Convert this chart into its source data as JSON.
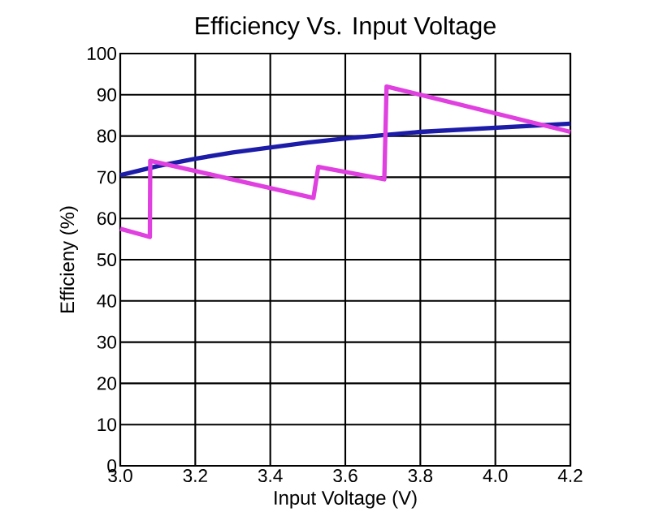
{
  "chart_data": {
    "type": "line",
    "title": "Efficiency Vs. Input Voltage",
    "xlabel": "Input Voltage (V)",
    "ylabel": "Efficieny (%)",
    "xlim": [
      3.0,
      4.2
    ],
    "ylim": [
      0,
      100
    ],
    "xticks": [
      {
        "value": 3.0,
        "label": "3.0"
      },
      3.2,
      3.4,
      3.6,
      3.8,
      {
        "value": 4.0,
        "label": "4.0"
      },
      4.2
    ],
    "yticks": [
      0,
      10,
      20,
      30,
      40,
      50,
      60,
      70,
      80,
      90,
      100
    ],
    "grid": true,
    "marker": "none",
    "line_style": "solid",
    "series": [
      {
        "color": "#1c1ca8",
        "x": [
          3.0,
          3.1,
          3.2,
          3.3,
          3.4,
          3.5,
          3.6,
          3.7,
          3.8,
          3.9,
          4.0,
          4.1,
          4.2
        ],
        "values": [
          70.5,
          72.7,
          74.5,
          76,
          77.2,
          78.4,
          79.4,
          80.2,
          81,
          81.5,
          82,
          82.5,
          83
        ]
      },
      {
        "color": "#e040e0",
        "x": [
          3.0,
          3.079,
          3.08,
          3.515,
          3.528,
          3.704,
          3.71,
          4.2
        ],
        "values": [
          57.5,
          55.5,
          74,
          65,
          72.5,
          69.5,
          92,
          81
        ]
      }
    ]
  }
}
